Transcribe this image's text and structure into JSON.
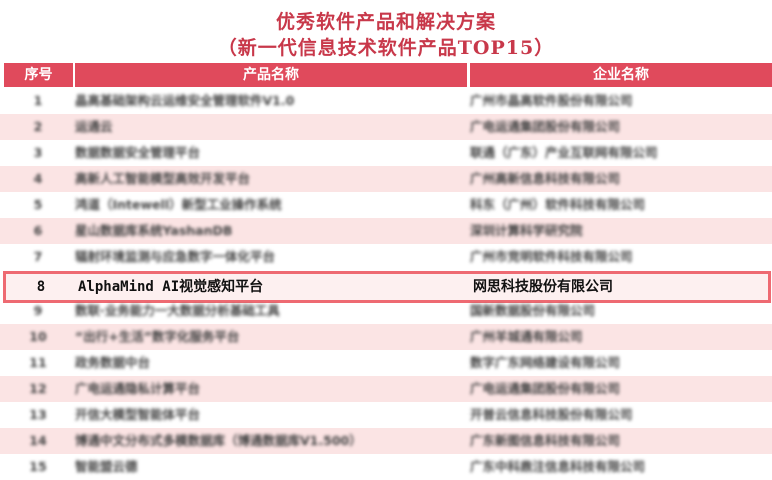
{
  "title": "优秀软件产品和解决方案",
  "subtitle": "（新一代信息技术软件产品TOP15）",
  "colors": {
    "title": "#c8384a",
    "header_bg": "#e04a5c",
    "stripe": "#fbe4e4",
    "highlight_border": "#ee6a72"
  },
  "table": {
    "headers": [
      "序号",
      "产品名称",
      "企业名称"
    ],
    "highlighted_row": 8,
    "rows": [
      {
        "no": "1",
        "product": "晶高基础架构云运维安全管理软件V1.0",
        "company": "广州市晶高软件股份有限公司"
      },
      {
        "no": "2",
        "product": "运通云",
        "company": "广电运通集团股份有限公司"
      },
      {
        "no": "3",
        "product": "数据数据安全管理平台",
        "company": "联通（广东）产业互联网有限公司"
      },
      {
        "no": "4",
        "product": "高新人工智能模型高效开发平台",
        "company": "广州高新信息科技有限公司"
      },
      {
        "no": "5",
        "product": "鸿道（Intewell）新型工业操作系统",
        "company": "科东（广州）软件科技有限公司"
      },
      {
        "no": "6",
        "product": "星山数据库系统YashanDB",
        "company": "深圳计算科学研究院"
      },
      {
        "no": "7",
        "product": "辐射环境监测与应急数字一体化平台",
        "company": "广州市竞明软件科技有限公司"
      },
      {
        "no": "8",
        "product": "AlphaMind AI视觉感知平台",
        "company": "网思科技股份有限公司"
      },
      {
        "no": "9",
        "product": "数联·业务能力一大数据分析基础工具",
        "company": "国新数据股份有限公司"
      },
      {
        "no": "10",
        "product": "“出行+生活”数字化服务平台",
        "company": "广州羊城通有限公司"
      },
      {
        "no": "11",
        "product": "政务数据中台",
        "company": "数字广东网络建设有限公司"
      },
      {
        "no": "12",
        "product": "广电运通隐私计算平台",
        "company": "广电运通集团股份有限公司"
      },
      {
        "no": "13",
        "product": "开信大模型智能体平台",
        "company": "开普云信息科技股份有限公司"
      },
      {
        "no": "14",
        "product": "博通中文分布式多模数据库（博通数据库V1.500）",
        "company": "广东新图信息科技有限公司"
      },
      {
        "no": "15",
        "product": "智能盟云德",
        "company": "广东中科鼎注信息科技有限公司"
      }
    ]
  }
}
